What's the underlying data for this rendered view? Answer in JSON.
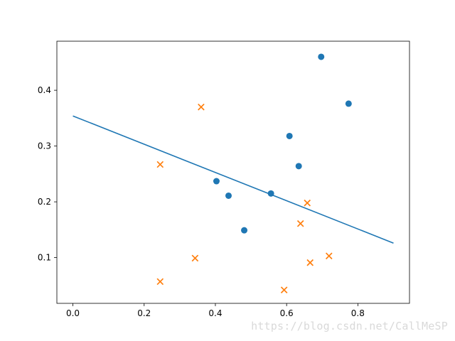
{
  "chart_data": {
    "type": "scatter",
    "title": "",
    "xlabel": "",
    "ylabel": "",
    "xlim": [
      -0.045,
      0.945
    ],
    "ylim": [
      0.018,
      0.488
    ],
    "xticks": [
      0.0,
      0.2,
      0.4,
      0.6,
      0.8
    ],
    "xtick_labels": [
      "0.0",
      "0.2",
      "0.4",
      "0.6",
      "0.8"
    ],
    "yticks": [
      0.1,
      0.2,
      0.3,
      0.4
    ],
    "ytick_labels": [
      "0.1",
      "0.2",
      "0.3",
      "0.4"
    ],
    "grid": false,
    "legend": "none",
    "series": [
      {
        "marker": "circle",
        "color": "#1f77b4",
        "points": [
          {
            "x": 0.697,
            "y": 0.46
          },
          {
            "x": 0.774,
            "y": 0.376
          },
          {
            "x": 0.608,
            "y": 0.318
          },
          {
            "x": 0.634,
            "y": 0.264
          },
          {
            "x": 0.403,
            "y": 0.237
          },
          {
            "x": 0.437,
            "y": 0.211
          },
          {
            "x": 0.556,
            "y": 0.215
          },
          {
            "x": 0.481,
            "y": 0.149
          }
        ]
      },
      {
        "marker": "x",
        "color": "#ff7f0e",
        "points": [
          {
            "x": 0.36,
            "y": 0.37
          },
          {
            "x": 0.245,
            "y": 0.267
          },
          {
            "x": 0.658,
            "y": 0.198
          },
          {
            "x": 0.639,
            "y": 0.161
          },
          {
            "x": 0.343,
            "y": 0.099
          },
          {
            "x": 0.719,
            "y": 0.103
          },
          {
            "x": 0.666,
            "y": 0.091
          },
          {
            "x": 0.245,
            "y": 0.057
          },
          {
            "x": 0.593,
            "y": 0.042
          }
        ]
      }
    ],
    "lines": [
      {
        "color": "#1f77b4",
        "x": [
          0.0,
          0.9
        ],
        "y": [
          0.354,
          0.126
        ]
      }
    ]
  },
  "watermark": {
    "text": "https://blog.csdn.net/CallMeSP"
  }
}
